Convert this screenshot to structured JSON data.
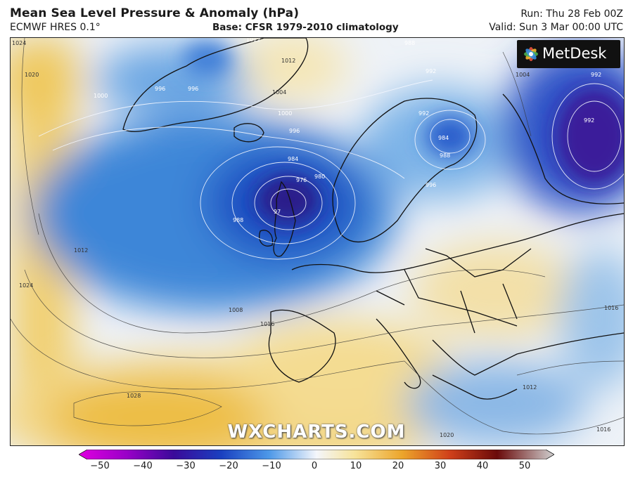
{
  "header": {
    "title": "Mean Sea Level Pressure & Anomaly (hPa)",
    "model": "ECMWF HRES 0.1°",
    "base": "Base: CFSR 1979-2010 climatology",
    "run": "Run: Thu 28 Feb 00Z",
    "valid": "Valid: Sun 3 Mar 00:00 UTC"
  },
  "logo": {
    "text": "MetDesk"
  },
  "watermark": "WXCHARTS.COM",
  "colorbar": {
    "ticks": [
      "−50",
      "−40",
      "−30",
      "−20",
      "−10",
      "0",
      "10",
      "20",
      "30",
      "40",
      "50"
    ],
    "colors": [
      "#e000e0",
      "#6b00a8",
      "#2a0a8e",
      "#1a3fc0",
      "#3f8ee6",
      "#e8f2fb",
      "#f7e7a5",
      "#eaa32b",
      "#c8321a",
      "#6a0a0a",
      "#c9c9c9"
    ]
  },
  "isobars": {
    "labels": [
      "1024",
      "1020",
      "1012",
      "1000",
      "996",
      "1012",
      "988",
      "992",
      "1004",
      "992",
      "992",
      "996",
      "1004",
      "1000",
      "996",
      "984",
      "976",
      "980",
      "97",
      "988",
      "984",
      "988",
      "996",
      "992",
      "1012",
      "1024",
      "1008",
      "1016",
      "1028",
      "1016",
      "1012",
      "1016",
      "1020"
    ]
  }
}
